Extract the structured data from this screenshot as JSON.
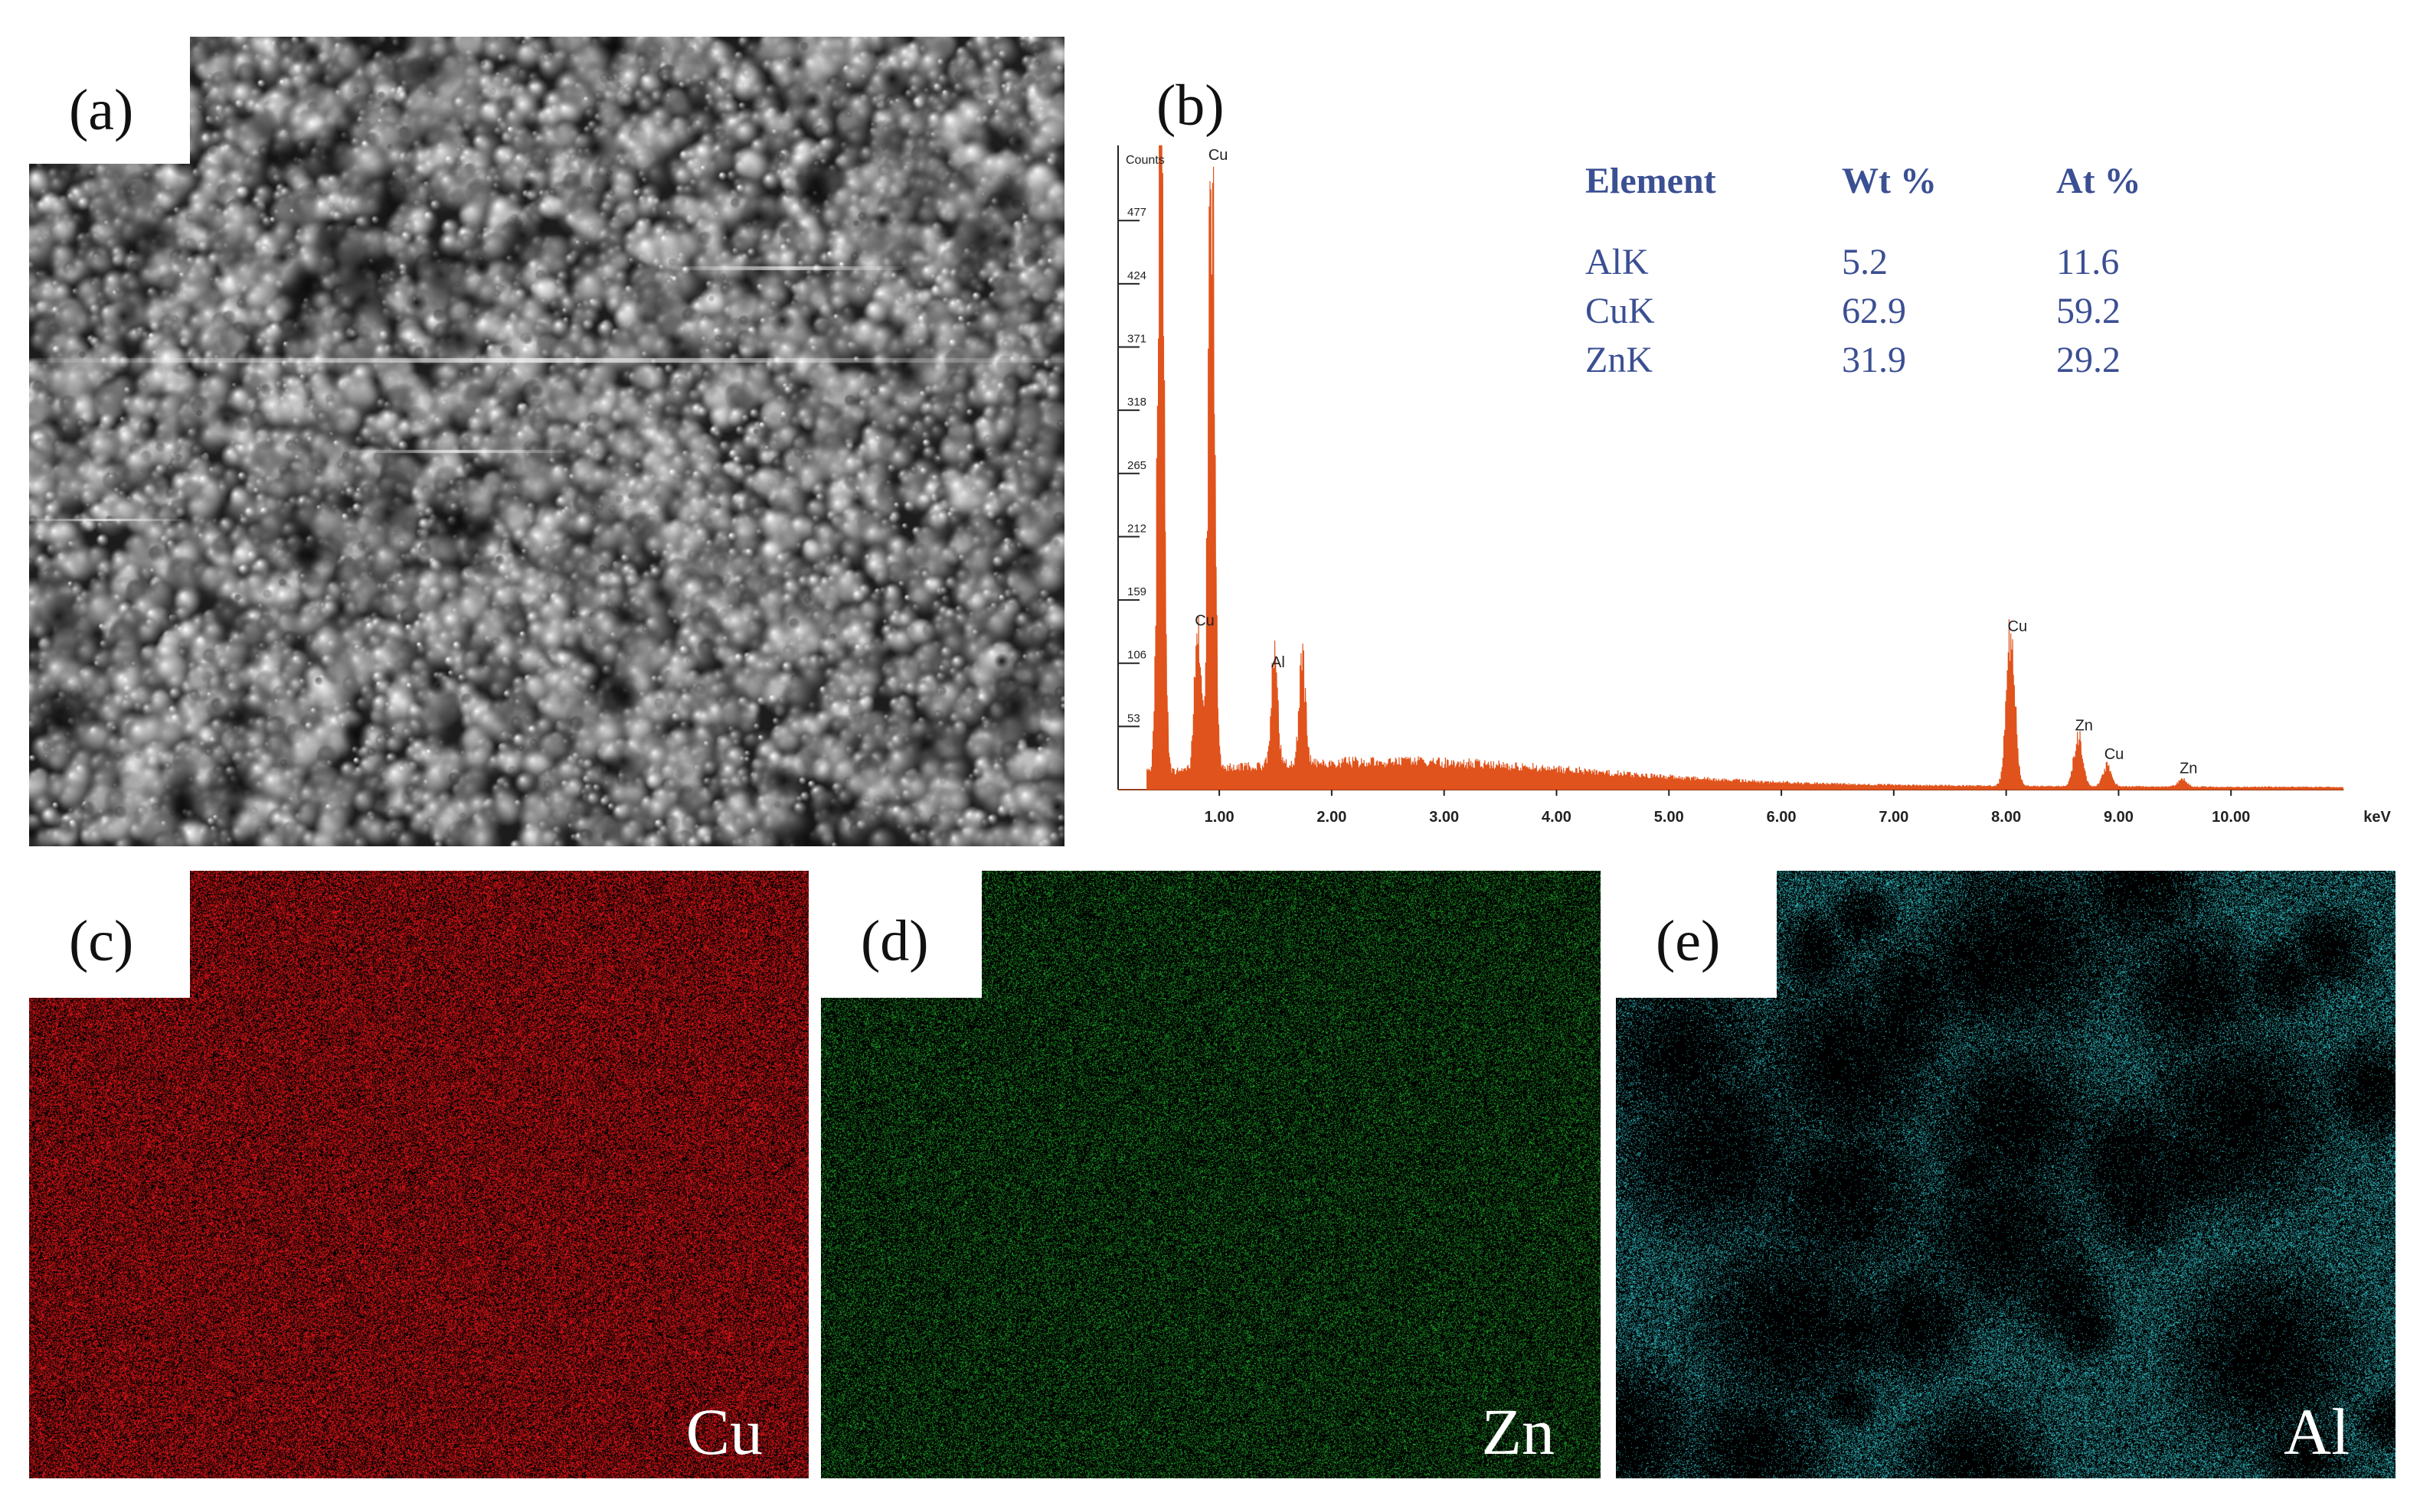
{
  "panels": {
    "a": {
      "label": "(a)"
    },
    "b": {
      "label": "(b)"
    },
    "c": {
      "label": "(c)",
      "element": "Cu",
      "dot_color": "#e8161a"
    },
    "d": {
      "label": "(d)",
      "element": "Zn",
      "dot_color": "#1fa82a"
    },
    "e": {
      "label": "(e)",
      "element": "Al",
      "dot_color": "#33c4cc"
    }
  },
  "composition_table": {
    "headers": [
      "Element",
      "Wt %",
      "At %"
    ],
    "rows": [
      [
        "AlK",
        "5.2",
        "11.6"
      ],
      [
        "CuK",
        "62.9",
        "59.2"
      ],
      [
        "ZnK",
        "31.9",
        "29.2"
      ]
    ]
  },
  "chart_data": {
    "type": "line",
    "ylabel": "Counts",
    "xlabel": "keV",
    "x_ticks": [
      "1.00",
      "2.00",
      "3.00",
      "4.00",
      "5.00",
      "6.00",
      "7.00",
      "8.00",
      "9.00",
      "10.00"
    ],
    "y_ticks": [
      "53",
      "106",
      "159",
      "212",
      "265",
      "318",
      "371",
      "424",
      "477"
    ],
    "xlim": [
      0.1,
      11.0
    ],
    "ylim": [
      0,
      540
    ],
    "color": "#e0531c",
    "peaks": [
      {
        "label": "",
        "x": 0.48,
        "y": 530
      },
      {
        "label": "Cu",
        "x": 0.93,
        "y": 520
      },
      {
        "label": "Cu",
        "x": 0.81,
        "y": 130
      },
      {
        "label": "Al",
        "x": 1.49,
        "y": 95
      },
      {
        "label": "",
        "x": 1.74,
        "y": 85
      },
      {
        "label": "Cu",
        "x": 8.04,
        "y": 125
      },
      {
        "label": "Zn",
        "x": 8.64,
        "y": 42
      },
      {
        "label": "Cu",
        "x": 8.9,
        "y": 18
      },
      {
        "label": "Zn",
        "x": 9.57,
        "y": 6
      }
    ]
  }
}
